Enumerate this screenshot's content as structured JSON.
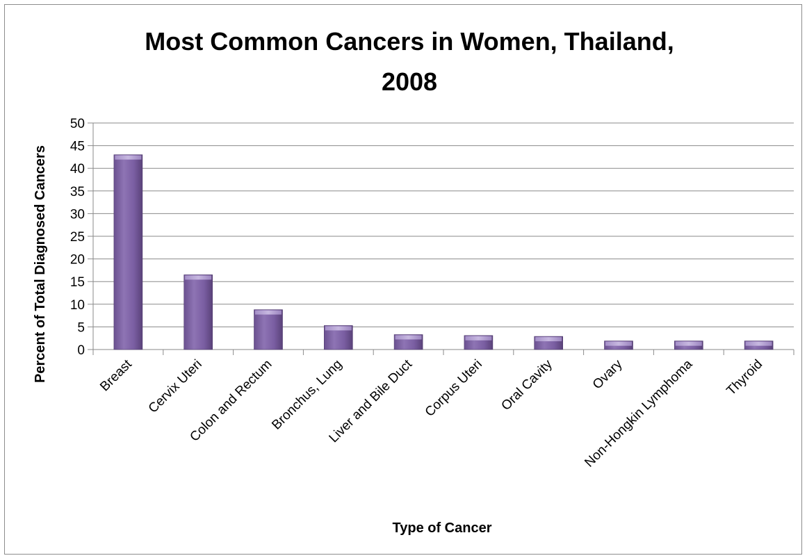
{
  "chart_data": {
    "type": "bar",
    "title": "Most Common Cancers in Women, Thailand, 2008",
    "title_lines": [
      "Most Common Cancers in Women, Thailand,",
      "2008"
    ],
    "xlabel": "Type of Cancer",
    "ylabel": "Percent of Total Diagnosed Cancers",
    "categories": [
      "Breast",
      "Cervix Uteri",
      "Colon and Rectum",
      "Bronchus, Lung",
      "Liver and Bile Duct",
      "Corpus Uteri",
      "Oral Cavity",
      "Ovary",
      "Non-Hongkin Lymphoma",
      "Thyroid"
    ],
    "values": [
      43,
      16.5,
      8.8,
      5.3,
      3.3,
      3.1,
      2.9,
      1.9,
      1.9,
      1.9
    ],
    "ylim": [
      0,
      50
    ],
    "yticks": [
      "0",
      "5",
      "10",
      "15",
      "20",
      "25",
      "30",
      "35",
      "40",
      "45",
      "50"
    ],
    "grid": true,
    "legend": "none",
    "colors": {
      "bar": "#8064a2",
      "bar_light": "#b9a6d6",
      "bar_dark": "#5e4680"
    }
  }
}
